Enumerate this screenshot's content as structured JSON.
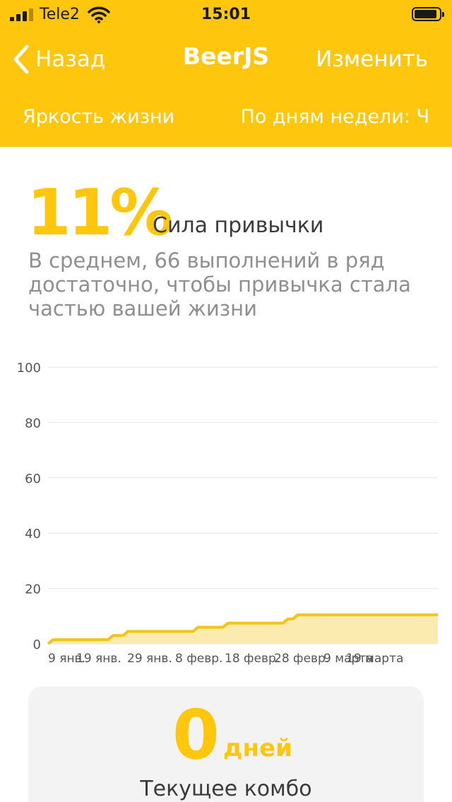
{
  "status_bar": {
    "carrier": "Tele2",
    "time": "15:01",
    "signal_bars_filled": 3,
    "signal_bars_total": 4
  },
  "nav": {
    "back_label": "Назад",
    "title": "BeerJS",
    "edit_label": "Изменить"
  },
  "subheader": {
    "left": "Яркость жизни",
    "right": "По дням недели: Ч"
  },
  "strength": {
    "percent": "11%",
    "label": "Сила привычки",
    "description": "В среднем, 66 выполнений в ряд достаточно, чтобы привычка стала частью вашей жизни"
  },
  "chart_data": {
    "type": "area",
    "ylim": [
      0,
      100
    ],
    "y_ticks": [
      "100",
      "80",
      "60",
      "40",
      "20",
      "0"
    ],
    "x_tick_labels": [
      "9 янв.",
      "19 янв.",
      "29 янв.",
      "8 февр.",
      "18 февр.",
      "28 февр.",
      "9 марта",
      "19 марта"
    ],
    "series": [
      {
        "x": [
          0,
          1,
          2,
          3,
          4,
          5,
          6,
          7,
          8,
          9,
          10,
          11,
          12,
          13,
          14,
          15,
          16,
          17,
          18,
          19,
          20,
          21,
          22,
          23,
          24,
          25,
          26,
          27,
          28,
          29,
          30,
          31,
          32,
          33,
          34,
          35,
          36,
          37,
          38,
          39,
          40,
          41,
          42,
          43,
          44,
          45,
          46,
          47,
          48,
          49,
          50,
          51,
          52,
          53,
          54,
          55,
          56,
          57,
          58,
          59,
          60,
          61,
          62,
          63,
          64,
          65,
          66,
          67,
          68,
          69,
          70,
          71,
          72,
          73,
          74,
          75,
          76,
          77,
          78
        ],
        "values": [
          0,
          1.5,
          1.5,
          1.5,
          1.5,
          1.5,
          1.5,
          1.5,
          1.5,
          1.5,
          1.5,
          1.5,
          1.5,
          3,
          3,
          3,
          4.5,
          4.5,
          4.5,
          4.5,
          4.5,
          4.5,
          4.5,
          4.5,
          4.5,
          4.5,
          4.5,
          4.5,
          4.5,
          4.5,
          6,
          6,
          6,
          6,
          6,
          6,
          7.5,
          7.5,
          7.5,
          7.5,
          7.5,
          7.5,
          7.5,
          7.5,
          7.5,
          7.5,
          7.5,
          7.5,
          9,
          9,
          10.5,
          10.5,
          10.5,
          10.5,
          10.5,
          10.5,
          10.5,
          10.5,
          10.5,
          10.5,
          10.5,
          10.5,
          10.5,
          10.5,
          10.5,
          10.5,
          10.5,
          10.5,
          10.5,
          10.5,
          10.5,
          10.5,
          10.5,
          10.5,
          10.5,
          10.5,
          10.5,
          10.5,
          10.5
        ]
      }
    ],
    "grid": true,
    "line_color": "#F3C318",
    "fill_color": "#FCEBAE"
  },
  "combo": {
    "value": "0",
    "unit": "дней",
    "label": "Текущее комбо"
  },
  "colors": {
    "accent": "#FEC70D",
    "text_dark": "#3a3a3a",
    "text_muted": "#8f8f8f"
  }
}
